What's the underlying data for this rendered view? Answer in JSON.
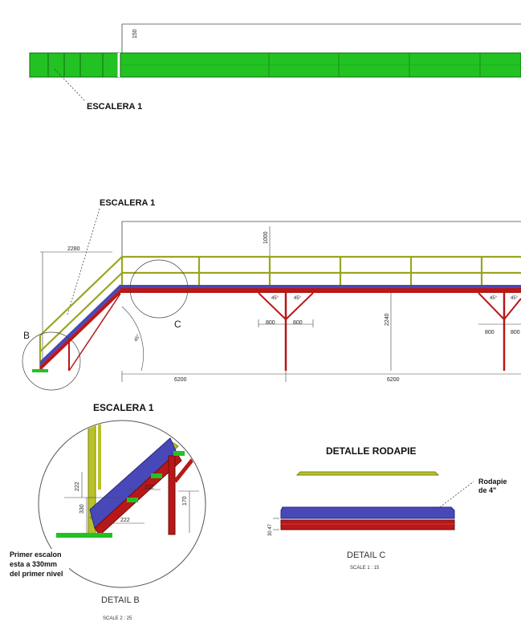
{
  "labels": {
    "escalera_top": "ESCALERA 1",
    "escalera_mid": "ESCALERA 1",
    "escalera_detail": "ESCALERA 1",
    "marker_b": "B",
    "marker_c": "C",
    "detalle_rodapie": "DETALLE RODAPIE",
    "rodapie_note_1": "Rodapie",
    "rodapie_note_2": "de 4\"",
    "primer_note_1": "Primer escalon",
    "primer_note_2": "esta a 330mm",
    "primer_note_3": "del primer nivel",
    "detail_b_title": "DETAIL B",
    "detail_b_scale": "SCALE 2 : 25",
    "detail_c_title": "DETAIL C",
    "detail_c_scale": "SCALE 1 : 15"
  },
  "dimensions": {
    "top_height": "150",
    "rail_height": "1000",
    "stair_height": "2280",
    "span_left": "6200",
    "span_right": "6200",
    "column_height": "2240",
    "brace_a1": "800",
    "brace_a2": "800",
    "brace_b1": "800",
    "brace_b2": "800",
    "angle_a1": "45°",
    "angle_a2": "45°",
    "angle_b1": "45°",
    "angle_b2": "45°",
    "stair_angle": "45°",
    "step_rise": "330",
    "step_run": "222",
    "step_rise_2": "222",
    "step_top": "222",
    "detail_b_side": "170",
    "rodapie_gap": "30 47"
  },
  "colors": {
    "deck_green": "#22c222",
    "rail_olive": "#b8c228",
    "beam_blue": "#4848b8",
    "beam_red": "#b81818",
    "dim_line": "#333333"
  }
}
